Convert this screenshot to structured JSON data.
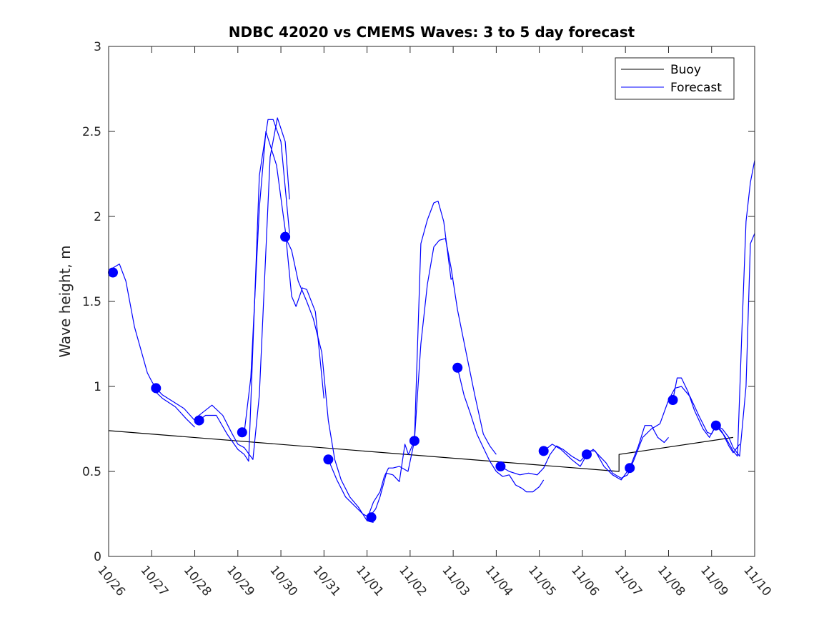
{
  "chart_data": {
    "type": "line",
    "title": "NDBC 42020 vs CMEMS Waves: 3 to 5 day forecast",
    "xlabel": "",
    "ylabel": "Wave height, m",
    "xlim": [
      0,
      15
    ],
    "ylim": [
      0,
      3
    ],
    "x_ticks": [
      0,
      1,
      2,
      3,
      4,
      5,
      6,
      7,
      8,
      9,
      10,
      11,
      12,
      13,
      14,
      15
    ],
    "x_tick_labels": [
      "10/26",
      "10/27",
      "10/28",
      "10/29",
      "10/30",
      "10/31",
      "11/01",
      "11/02",
      "11/03",
      "11/04",
      "11/05",
      "11/06",
      "11/07",
      "11/08",
      "11/09",
      "11/10"
    ],
    "y_ticks": [
      0,
      0.5,
      1,
      1.5,
      2,
      2.5,
      3
    ],
    "y_tick_labels": [
      "0",
      "0.5",
      "1",
      "1.5",
      "2",
      "2.5",
      "3"
    ],
    "grid": false,
    "legend_position": "top-right",
    "legend": [
      "Buoy",
      "Forecast"
    ],
    "colors": {
      "buoy": "#000000",
      "forecast": "#0000ff",
      "axes": "#262626"
    },
    "series": [
      {
        "name": "Buoy",
        "color": "#000000",
        "segments": [
          [
            [
              0,
              0.74
            ],
            [
              11.85,
              0.5
            ],
            [
              11.85,
              0.6
            ],
            [
              14.5,
              0.7
            ]
          ]
        ]
      },
      {
        "name": "Forecast",
        "color": "#0000ff",
        "segments": [
          [
            [
              0.0,
              1.67
            ],
            [
              0.12,
              1.7
            ],
            [
              0.25,
              1.72
            ],
            [
              0.4,
              1.62
            ],
            [
              0.6,
              1.35
            ],
            [
              0.8,
              1.17
            ],
            [
              0.9,
              1.08
            ],
            [
              1.0,
              1.03
            ],
            [
              1.1,
              0.99
            ],
            [
              1.25,
              0.95
            ],
            [
              1.5,
              0.91
            ],
            [
              1.75,
              0.87
            ],
            [
              2.0,
              0.8
            ],
            [
              2.1,
              0.8
            ],
            [
              2.25,
              0.83
            ],
            [
              2.5,
              0.83
            ],
            [
              2.75,
              0.72
            ],
            [
              3.0,
              0.63
            ],
            [
              3.15,
              0.6
            ],
            [
              3.25,
              0.56
            ],
            [
              3.5,
              2.24
            ],
            [
              3.7,
              2.57
            ],
            [
              3.82,
              2.57
            ],
            [
              4.0,
              2.44
            ],
            [
              4.2,
              1.9
            ]
          ],
          [
            [
              1.0,
              0.99
            ],
            [
              1.25,
              0.93
            ],
            [
              1.55,
              0.88
            ],
            [
              1.8,
              0.81
            ],
            [
              2.0,
              0.76
            ]
          ],
          [
            [
              2.0,
              0.81
            ],
            [
              2.25,
              0.86
            ],
            [
              2.4,
              0.89
            ],
            [
              2.65,
              0.83
            ],
            [
              2.85,
              0.73
            ],
            [
              3.0,
              0.66
            ],
            [
              3.15,
              0.64
            ],
            [
              3.35,
              0.57
            ],
            [
              3.5,
              0.95
            ],
            [
              3.75,
              2.35
            ],
            [
              3.92,
              2.58
            ],
            [
              4.1,
              2.44
            ],
            [
              4.2,
              2.1
            ]
          ],
          [
            [
              3.15,
              0.73
            ],
            [
              3.3,
              1.05
            ],
            [
              3.5,
              2.05
            ],
            [
              3.65,
              2.5
            ],
            [
              3.9,
              2.3
            ],
            [
              4.1,
              1.92
            ],
            [
              4.25,
              1.53
            ],
            [
              4.35,
              1.47
            ],
            [
              4.5,
              1.58
            ],
            [
              4.6,
              1.57
            ],
            [
              4.8,
              1.44
            ],
            [
              5.0,
              0.93
            ]
          ],
          [
            [
              4.1,
              1.88
            ],
            [
              4.25,
              1.8
            ],
            [
              4.4,
              1.62
            ],
            [
              4.6,
              1.5
            ],
            [
              4.75,
              1.4
            ],
            [
              4.95,
              1.2
            ],
            [
              5.1,
              0.8
            ],
            [
              5.25,
              0.57
            ],
            [
              5.4,
              0.45
            ],
            [
              5.6,
              0.35
            ],
            [
              5.8,
              0.29
            ],
            [
              6.0,
              0.21
            ],
            [
              6.15,
              0.2
            ]
          ],
          [
            [
              5.1,
              0.57
            ],
            [
              5.3,
              0.45
            ],
            [
              5.5,
              0.35
            ],
            [
              5.7,
              0.3
            ],
            [
              5.9,
              0.25
            ],
            [
              6.05,
              0.23
            ],
            [
              6.2,
              0.28
            ],
            [
              6.3,
              0.35
            ],
            [
              6.45,
              0.49
            ],
            [
              6.6,
              0.48
            ],
            [
              6.75,
              0.44
            ],
            [
              6.88,
              0.66
            ],
            [
              6.96,
              0.6
            ],
            [
              7.1,
              0.68
            ],
            [
              7.25,
              1.84
            ],
            [
              7.4,
              1.98
            ],
            [
              7.55,
              2.08
            ],
            [
              7.65,
              2.09
            ],
            [
              7.78,
              1.97
            ],
            [
              7.95,
              1.63
            ],
            [
              8.0,
              1.64
            ]
          ],
          [
            [
              6.0,
              0.22
            ],
            [
              6.15,
              0.32
            ],
            [
              6.3,
              0.38
            ],
            [
              6.4,
              0.47
            ],
            [
              6.5,
              0.52
            ],
            [
              6.6,
              0.52
            ],
            [
              6.75,
              0.53
            ],
            [
              6.95,
              0.5
            ],
            [
              7.1,
              0.68
            ],
            [
              7.25,
              1.25
            ],
            [
              7.4,
              1.6
            ],
            [
              7.55,
              1.82
            ],
            [
              7.68,
              1.86
            ],
            [
              7.82,
              1.87
            ],
            [
              7.95,
              1.7
            ],
            [
              8.1,
              1.45
            ],
            [
              8.3,
              1.2
            ],
            [
              8.5,
              0.95
            ],
            [
              8.7,
              0.72
            ],
            [
              8.85,
              0.65
            ],
            [
              9.0,
              0.6
            ]
          ],
          [
            [
              8.1,
              1.11
            ],
            [
              8.25,
              0.95
            ],
            [
              8.4,
              0.84
            ],
            [
              8.55,
              0.72
            ],
            [
              8.7,
              0.64
            ],
            [
              8.85,
              0.56
            ],
            [
              9.0,
              0.5
            ],
            [
              9.15,
              0.47
            ],
            [
              9.3,
              0.48
            ],
            [
              9.45,
              0.42
            ],
            [
              9.6,
              0.4
            ],
            [
              9.7,
              0.38
            ],
            [
              9.85,
              0.38
            ],
            [
              10.0,
              0.41
            ],
            [
              10.1,
              0.45
            ]
          ],
          [
            [
              9.1,
              0.53
            ],
            [
              9.3,
              0.5
            ],
            [
              9.55,
              0.48
            ],
            [
              9.75,
              0.49
            ],
            [
              9.95,
              0.48
            ],
            [
              10.1,
              0.52
            ],
            [
              10.25,
              0.6
            ],
            [
              10.4,
              0.65
            ],
            [
              10.55,
              0.63
            ],
            [
              10.75,
              0.59
            ],
            [
              10.95,
              0.56
            ],
            [
              11.1,
              0.6
            ],
            [
              11.25,
              0.63
            ],
            [
              11.4,
              0.59
            ],
            [
              11.55,
              0.55
            ],
            [
              11.7,
              0.49
            ],
            [
              11.9,
              0.46
            ],
            [
              12.05,
              0.48
            ],
            [
              12.2,
              0.57
            ],
            [
              12.4,
              0.7
            ],
            [
              12.6,
              0.75
            ],
            [
              12.8,
              0.78
            ],
            [
              13.0,
              0.92
            ],
            [
              13.15,
              0.99
            ],
            [
              13.3,
              1.0
            ],
            [
              13.5,
              0.94
            ],
            [
              13.7,
              0.83
            ],
            [
              13.9,
              0.73
            ],
            [
              14.0,
              0.72
            ],
            [
              14.1,
              0.77
            ],
            [
              14.25,
              0.75
            ],
            [
              14.4,
              0.7
            ],
            [
              14.5,
              0.64
            ],
            [
              14.65,
              0.59
            ],
            [
              14.8,
              1.0
            ],
            [
              14.9,
              1.84
            ],
            [
              15.0,
              1.9
            ]
          ],
          [
            [
              10.1,
              0.62
            ],
            [
              10.3,
              0.66
            ],
            [
              10.5,
              0.63
            ],
            [
              10.75,
              0.57
            ],
            [
              10.95,
              0.53
            ],
            [
              11.15,
              0.62
            ],
            [
              11.3,
              0.62
            ],
            [
              11.5,
              0.53
            ],
            [
              11.7,
              0.48
            ],
            [
              11.9,
              0.45
            ],
            [
              12.1,
              0.52
            ],
            [
              12.3,
              0.65
            ],
            [
              12.45,
              0.77
            ],
            [
              12.6,
              0.77
            ],
            [
              12.75,
              0.7
            ],
            [
              12.9,
              0.67
            ],
            [
              13.0,
              0.7
            ]
          ],
          [
            [
              13.1,
              0.92
            ],
            [
              13.2,
              1.05
            ],
            [
              13.3,
              1.05
            ],
            [
              13.45,
              0.97
            ],
            [
              13.6,
              0.86
            ],
            [
              13.8,
              0.75
            ],
            [
              13.95,
              0.7
            ],
            [
              14.1,
              0.77
            ],
            [
              14.3,
              0.71
            ],
            [
              14.5,
              0.62
            ],
            [
              14.6,
              0.59
            ],
            [
              14.7,
              1.3
            ],
            [
              14.8,
              1.97
            ],
            [
              14.9,
              2.2
            ],
            [
              15.0,
              2.33
            ]
          ],
          [
            [
              14.1,
              0.78
            ],
            [
              14.25,
              0.73
            ],
            [
              14.4,
              0.65
            ],
            [
              14.5,
              0.61
            ],
            [
              14.65,
              0.66
            ]
          ]
        ]
      }
    ],
    "markers": {
      "color": "#0000ff",
      "points": [
        [
          0.1,
          1.67
        ],
        [
          1.1,
          0.99
        ],
        [
          2.1,
          0.8
        ],
        [
          3.1,
          0.73
        ],
        [
          4.1,
          1.88
        ],
        [
          5.1,
          0.57
        ],
        [
          6.1,
          0.23
        ],
        [
          7.1,
          0.68
        ],
        [
          8.1,
          1.11
        ],
        [
          9.1,
          0.53
        ],
        [
          10.1,
          0.62
        ],
        [
          11.1,
          0.6
        ],
        [
          12.1,
          0.52
        ],
        [
          13.1,
          0.92
        ],
        [
          14.1,
          0.77
        ]
      ]
    }
  }
}
